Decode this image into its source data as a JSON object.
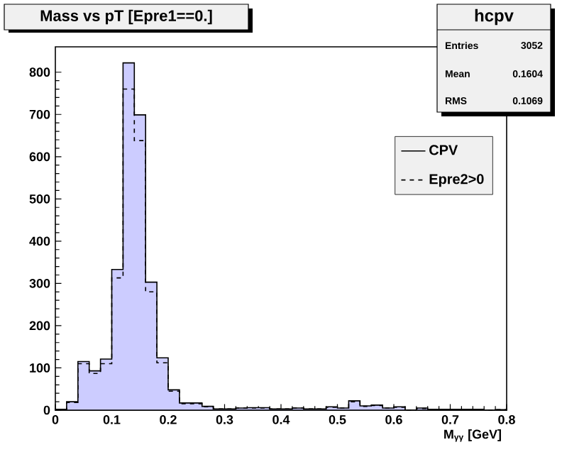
{
  "chart_data": {
    "type": "histogram",
    "title": "Mass vs pT [Epre1==0.]",
    "xlabel": "M$_{γγ}$ [GeV]",
    "bins": [
      0,
      0.02,
      0.04,
      0.06,
      0.08,
      0.1,
      0.12,
      0.14,
      0.16,
      0.18,
      0.2,
      0.22,
      0.24,
      0.26,
      0.28,
      0.3,
      0.32,
      0.34,
      0.36,
      0.38,
      0.4,
      0.42,
      0.44,
      0.46,
      0.48,
      0.5,
      0.52,
      0.54,
      0.56,
      0.58,
      0.6,
      0.62,
      0.64,
      0.66,
      0.68,
      0.7,
      0.72,
      0.74,
      0.76,
      0.78,
      0.8
    ],
    "series": [
      {
        "name": "CPV",
        "color": "#ccccff",
        "line_style": "solid",
        "values": [
          2,
          20,
          115,
          93,
          121,
          333,
          822,
          699,
          303,
          124,
          48,
          17,
          17,
          9,
          3,
          3,
          5,
          6,
          6,
          3,
          3,
          5,
          3,
          3,
          8,
          5,
          22,
          10,
          12,
          5,
          8,
          0,
          5,
          2,
          2,
          2,
          2,
          2,
          0,
          1
        ]
      },
      {
        "name": "Epre2>0",
        "color": "#000000",
        "line_style": "dashed",
        "values": [
          2,
          18,
          110,
          87,
          110,
          313,
          760,
          638,
          280,
          112,
          45,
          15,
          15,
          8,
          3,
          3,
          5,
          5,
          5,
          3,
          3,
          5,
          3,
          3,
          7,
          5,
          20,
          9,
          11,
          5,
          7,
          0,
          4,
          2,
          2,
          2,
          2,
          2,
          0,
          1
        ]
      }
    ],
    "xlim": [
      0,
      0.8
    ],
    "ylim": [
      0,
      860
    ],
    "xticks": [
      0,
      0.1,
      0.2,
      0.3,
      0.4,
      0.5,
      0.6,
      0.7,
      0.8
    ],
    "yticks": [
      0,
      100,
      200,
      300,
      400,
      500,
      600,
      700,
      800
    ],
    "legend": "right",
    "grid": false,
    "annotations": [
      "hcpv",
      "Entries",
      "3052",
      "Mean",
      "0.1604",
      "RMS",
      "0.1069"
    ]
  }
}
